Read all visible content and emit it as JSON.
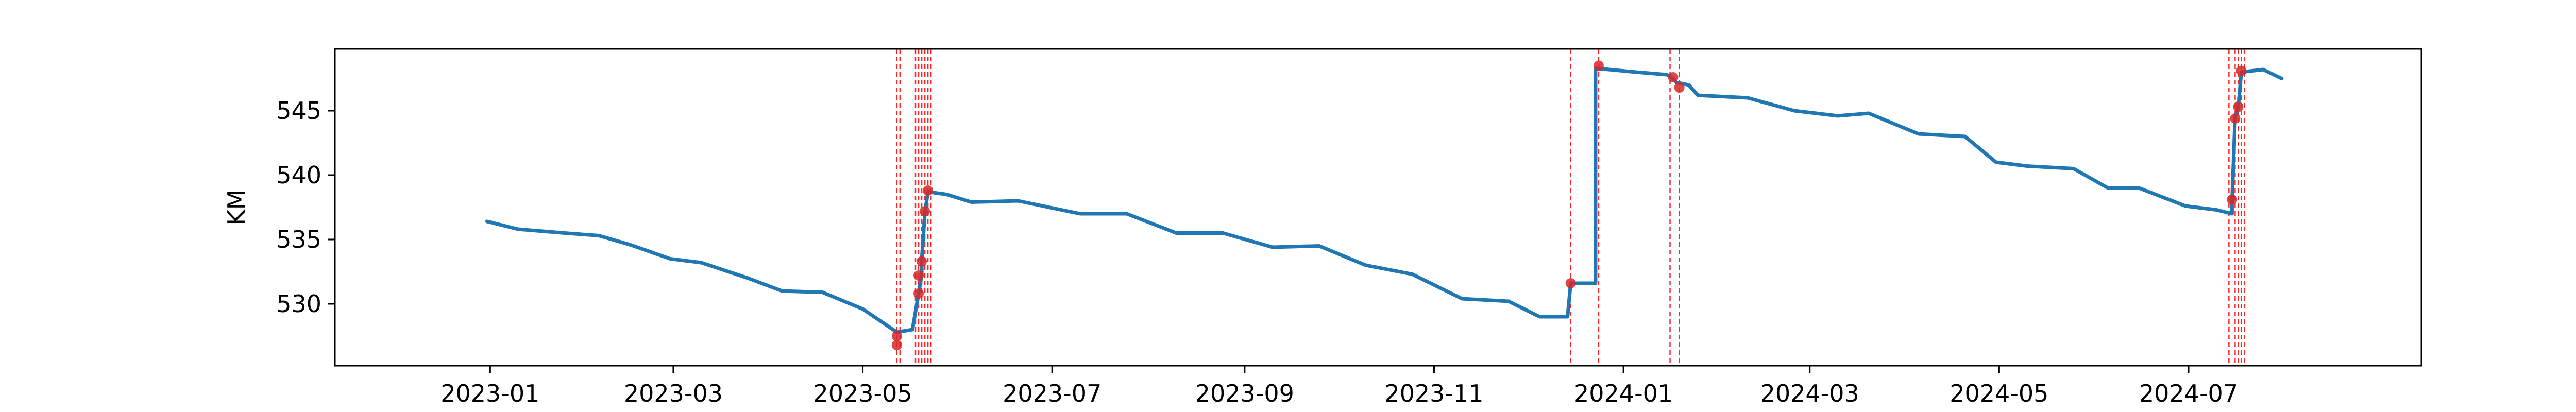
{
  "chart_data": {
    "type": "line",
    "title": "",
    "xlabel": "",
    "ylabel": "KM",
    "xlim": [
      "2022-11-12",
      "2024-09-14"
    ],
    "ylim": [
      525.2,
      549.8
    ],
    "x_ticks": [
      "2023-01",
      "2023-03",
      "2023-05",
      "2023-07",
      "2023-09",
      "2023-11",
      "2024-01",
      "2024-03",
      "2024-05",
      "2024-07"
    ],
    "y_ticks": [
      530,
      535,
      540,
      545
    ],
    "grid": false,
    "legend": "none",
    "line_color": "#1f77b4",
    "marker_color": "#d62728",
    "vline_color": "#ff0000",
    "series": [
      {
        "points": [
          [
            "2022-12-31",
            536.4
          ],
          [
            "2023-01-10",
            535.8
          ],
          [
            "2023-01-25",
            535.5
          ],
          [
            "2023-02-05",
            535.3
          ],
          [
            "2023-02-15",
            534.6
          ],
          [
            "2023-02-28",
            533.5
          ],
          [
            "2023-03-10",
            533.2
          ],
          [
            "2023-03-25",
            532.0
          ],
          [
            "2023-04-05",
            531.0
          ],
          [
            "2023-04-18",
            530.9
          ],
          [
            "2023-05-01",
            529.6
          ],
          [
            "2023-05-12",
            527.8
          ],
          [
            "2023-05-17",
            528.0
          ],
          [
            "2023-05-19",
            530.8
          ],
          [
            "2023-05-20",
            532.3
          ],
          [
            "2023-05-20",
            533.5
          ],
          [
            "2023-05-21",
            537.0
          ],
          [
            "2023-05-22",
            538.7
          ],
          [
            "2023-05-28",
            538.5
          ],
          [
            "2023-06-05",
            537.9
          ],
          [
            "2023-06-20",
            538.0
          ],
          [
            "2023-07-10",
            537.0
          ],
          [
            "2023-07-25",
            537.0
          ],
          [
            "2023-08-10",
            535.5
          ],
          [
            "2023-08-25",
            535.5
          ],
          [
            "2023-09-10",
            534.4
          ],
          [
            "2023-09-25",
            534.5
          ],
          [
            "2023-10-10",
            533.0
          ],
          [
            "2023-10-25",
            532.3
          ],
          [
            "2023-11-10",
            530.4
          ],
          [
            "2023-11-25",
            530.2
          ],
          [
            "2023-12-05",
            529.0
          ],
          [
            "2023-12-14",
            529.0
          ],
          [
            "2023-12-15",
            531.6
          ],
          [
            "2023-12-23",
            531.6
          ],
          [
            "2023-12-23",
            548.3
          ],
          [
            "2024-01-05",
            548.0
          ],
          [
            "2024-01-15",
            547.8
          ],
          [
            "2024-01-17",
            547.5
          ],
          [
            "2024-01-18",
            547.2
          ],
          [
            "2024-01-22",
            547.0
          ],
          [
            "2024-01-25",
            546.2
          ],
          [
            "2024-02-10",
            546.0
          ],
          [
            "2024-02-25",
            545.0
          ],
          [
            "2024-03-10",
            544.6
          ],
          [
            "2024-03-20",
            544.8
          ],
          [
            "2024-04-05",
            543.2
          ],
          [
            "2024-04-20",
            543.0
          ],
          [
            "2024-04-30",
            541.0
          ],
          [
            "2024-05-10",
            540.7
          ],
          [
            "2024-05-25",
            540.5
          ],
          [
            "2024-06-05",
            539.0
          ],
          [
            "2024-06-15",
            539.0
          ],
          [
            "2024-06-30",
            537.6
          ],
          [
            "2024-07-10",
            537.3
          ],
          [
            "2024-07-15",
            537.0
          ],
          [
            "2024-07-15",
            538.0
          ],
          [
            "2024-07-16",
            544.5
          ],
          [
            "2024-07-17",
            545.3
          ],
          [
            "2024-07-18",
            548.0
          ],
          [
            "2024-07-25",
            548.2
          ],
          [
            "2024-07-31",
            547.5
          ]
        ]
      }
    ],
    "markers": [
      [
        "2023-05-12",
        526.8
      ],
      [
        "2023-05-12",
        527.5
      ],
      [
        "2023-05-19",
        530.8
      ],
      [
        "2023-05-19",
        532.2
      ],
      [
        "2023-05-20",
        533.3
      ],
      [
        "2023-05-21",
        537.2
      ],
      [
        "2023-05-22",
        538.8
      ],
      [
        "2023-12-15",
        531.6
      ],
      [
        "2023-12-24",
        548.5
      ],
      [
        "2024-01-17",
        547.6
      ],
      [
        "2024-01-19",
        546.8
      ],
      [
        "2024-07-15",
        538.1
      ],
      [
        "2024-07-16",
        544.4
      ],
      [
        "2024-07-17",
        545.3
      ],
      [
        "2024-07-18",
        548.1
      ]
    ],
    "vlines": [
      "2023-05-12",
      "2023-05-13",
      "2023-05-18",
      "2023-05-19",
      "2023-05-20",
      "2023-05-21",
      "2023-05-22",
      "2023-05-23",
      "2023-12-15",
      "2023-12-24",
      "2024-01-16",
      "2024-01-19",
      "2024-07-14",
      "2024-07-16",
      "2024-07-17",
      "2024-07-18",
      "2024-07-19"
    ]
  }
}
